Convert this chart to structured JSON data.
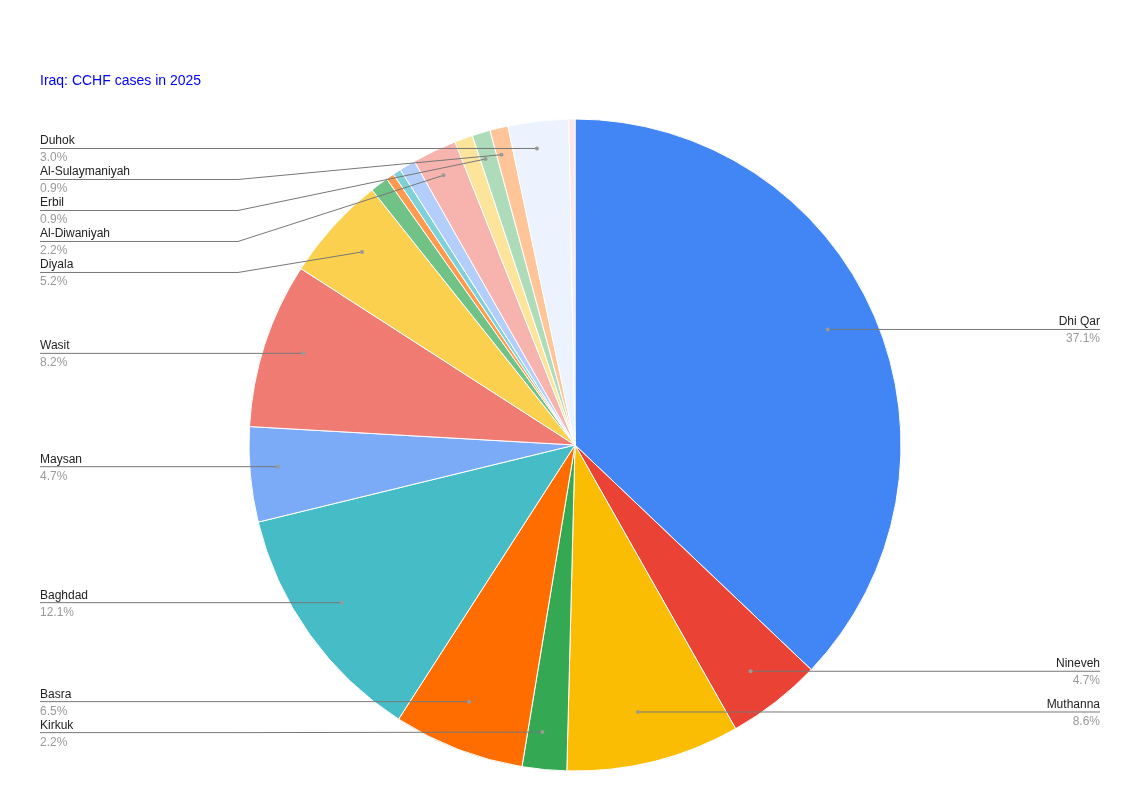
{
  "chart_data": {
    "type": "pie",
    "subtitle": "Iraq: CCHF cases in 2025",
    "categories": [
      "Dhi Qar",
      "Nineveh",
      "Muthanna",
      "Kirkuk",
      "Basra",
      "Baghdad",
      "Maysan",
      "Wasit",
      "Diyala",
      null,
      null,
      null,
      null,
      "Al-Diwaniyah",
      null,
      "Erbil",
      "Al-Sulaymaniyah",
      "Duhok",
      null
    ],
    "values": [
      37.1,
      4.7,
      8.6,
      2.2,
      6.5,
      12.1,
      4.7,
      8.2,
      5.2,
      0.9,
      0.4,
      0.4,
      0.8,
      2.2,
      0.9,
      0.9,
      0.9,
      3.0,
      0.3
    ],
    "value_labels": [
      "37.1%",
      "4.7%",
      "8.6%",
      "2.2%",
      "6.5%",
      "12.1%",
      "4.7%",
      "8.2%",
      "5.2%",
      null,
      null,
      null,
      null,
      "2.2%",
      null,
      "0.9%",
      "0.9%",
      "3.0%",
      null
    ],
    "colors": [
      "#4285f4",
      "#ea4335",
      "#fbbc04",
      "#34a853",
      "#ff6d01",
      "#46bdc6",
      "#7baaf7",
      "#f07b72",
      "#fcd04f",
      "#71c287",
      "#ff994d",
      "#7ed1d7",
      "#b3cefb",
      "#f7b4ae",
      "#fde49b",
      "#aedcba",
      "#ffc599",
      "#ecf3fe",
      "#fde7e5"
    ]
  }
}
